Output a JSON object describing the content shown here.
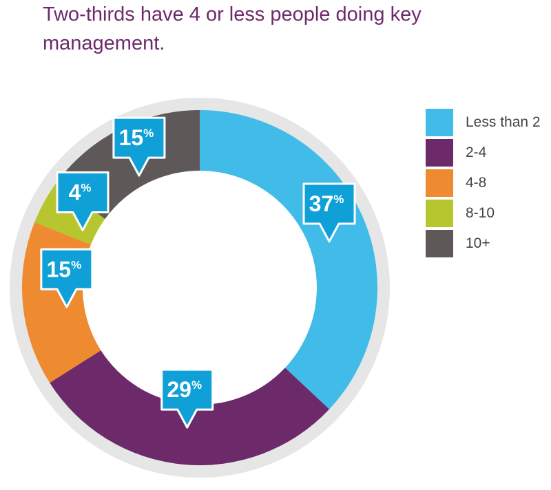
{
  "chart_data": {
    "type": "pie",
    "title": "Two-thirds have 4 or less people doing key management.",
    "categories": [
      "Less than 2",
      "2-4",
      "4-8",
      "8-10",
      "10+"
    ],
    "values": [
      37,
      29,
      15,
      4,
      15
    ],
    "labels": [
      "37%",
      "29%",
      "15%",
      "4%",
      "15%"
    ],
    "colors": [
      "#41bbe8",
      "#6d2a6b",
      "#ee8a2f",
      "#b7c62f",
      "#5e5859"
    ],
    "label_color": "#0fa0d8",
    "track_color": "#e6e6e6",
    "legend_position": "right"
  }
}
